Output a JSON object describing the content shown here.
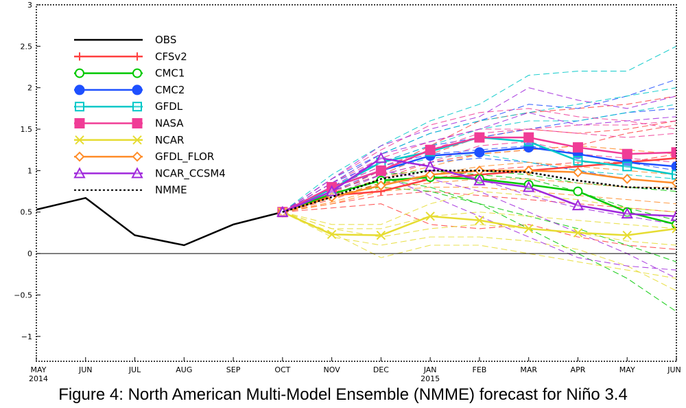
{
  "figure": {
    "caption": "Figure 4: North American Multi-Model Ensemble (NMME) forecast for Niño 3.4"
  },
  "chart_data": {
    "type": "line",
    "title": "",
    "xlabel": "",
    "ylabel": "",
    "x": [
      "MAY 2014",
      "JUN",
      "JUL",
      "AUG",
      "SEP",
      "OCT",
      "NOV",
      "DEC",
      "JAN 2015",
      "FEB",
      "MAR",
      "APR",
      "MAY",
      "JUN"
    ],
    "x_tick_labels": [
      {
        "month": "MAY",
        "year": "2014"
      },
      {
        "month": "JUN",
        "year": ""
      },
      {
        "month": "JUL",
        "year": ""
      },
      {
        "month": "AUG",
        "year": ""
      },
      {
        "month": "SEP",
        "year": ""
      },
      {
        "month": "OCT",
        "year": ""
      },
      {
        "month": "NOV",
        "year": ""
      },
      {
        "month": "DEC",
        "year": ""
      },
      {
        "month": "JAN",
        "year": "2015"
      },
      {
        "month": "FEB",
        "year": ""
      },
      {
        "month": "MAR",
        "year": ""
      },
      {
        "month": "APR",
        "year": ""
      },
      {
        "month": "MAY",
        "year": ""
      },
      {
        "month": "JUN",
        "year": ""
      }
    ],
    "ylim": [
      -1.3,
      3.0
    ],
    "y_ticks": [
      -1,
      -0.5,
      0,
      0.5,
      1,
      1.5,
      2,
      2.5,
      3
    ],
    "y_tick_labels": [
      "−1",
      "−0.5",
      "0",
      "0.5",
      "1",
      "1.5",
      "2",
      "2.5",
      "3"
    ],
    "zero_line": true,
    "grid": false,
    "legend_position": "top-left",
    "series": [
      {
        "name": "OBS",
        "color": "#000000",
        "marker": "none",
        "dash": "solid",
        "values": [
          0.53,
          0.67,
          0.22,
          0.1,
          0.35,
          0.5,
          null,
          null,
          null,
          null,
          null,
          null,
          null,
          null
        ]
      },
      {
        "name": "CFSv2",
        "color": "#ff4040",
        "marker": "plus",
        "dash": "solid",
        "values": [
          null,
          null,
          null,
          null,
          null,
          0.5,
          0.7,
          0.75,
          0.9,
          0.95,
          1.0,
          1.05,
          1.1,
          1.15
        ]
      },
      {
        "name": "CMC1",
        "color": "#00c800",
        "marker": "circle-open",
        "dash": "solid",
        "values": [
          null,
          null,
          null,
          null,
          null,
          0.5,
          0.72,
          0.88,
          0.92,
          0.9,
          0.83,
          0.75,
          0.5,
          0.35
        ]
      },
      {
        "name": "CMC2",
        "color": "#1e50ff",
        "marker": "circle-filled",
        "dash": "solid",
        "values": [
          null,
          null,
          null,
          null,
          null,
          0.5,
          0.8,
          1.0,
          1.18,
          1.22,
          1.28,
          1.2,
          1.1,
          1.05
        ]
      },
      {
        "name": "GFDL",
        "color": "#00c8c8",
        "marker": "square-open",
        "dash": "solid",
        "values": [
          null,
          null,
          null,
          null,
          null,
          0.5,
          0.78,
          1.1,
          1.23,
          1.4,
          1.35,
          1.12,
          1.05,
          0.95
        ]
      },
      {
        "name": "NASA",
        "color": "#f03c96",
        "marker": "square-filled",
        "dash": "solid",
        "values": [
          null,
          null,
          null,
          null,
          null,
          0.5,
          0.8,
          1.0,
          1.25,
          1.4,
          1.4,
          1.28,
          1.2,
          1.22
        ]
      },
      {
        "name": "NCAR",
        "color": "#e6dc32",
        "marker": "x",
        "dash": "solid",
        "values": [
          null,
          null,
          null,
          null,
          null,
          0.5,
          0.23,
          0.22,
          0.45,
          0.4,
          0.3,
          0.25,
          0.22,
          0.3
        ]
      },
      {
        "name": "GFDL_FLOR",
        "color": "#ff8c28",
        "marker": "diamond-open",
        "dash": "solid",
        "values": [
          null,
          null,
          null,
          null,
          null,
          0.5,
          0.68,
          0.82,
          0.95,
          1.0,
          1.0,
          0.98,
          0.9,
          0.85
        ]
      },
      {
        "name": "NCAR_CCSM4",
        "color": "#a028dc",
        "marker": "triangle-open",
        "dash": "solid",
        "values": [
          null,
          null,
          null,
          null,
          null,
          0.5,
          0.75,
          1.15,
          1.05,
          0.88,
          0.8,
          0.58,
          0.48,
          0.45
        ]
      },
      {
        "name": "NMME",
        "color": "#000000",
        "marker": "none",
        "dash": "dotted",
        "values": [
          null,
          null,
          null,
          null,
          null,
          0.5,
          0.68,
          0.9,
          1.0,
          1.0,
          0.98,
          0.88,
          0.8,
          0.78
        ]
      }
    ],
    "ensemble_members": {
      "description_visible": false,
      "palette": [
        "#ff4040",
        "#00c800",
        "#1e50ff",
        "#00c8c8",
        "#f03c96",
        "#e6dc32",
        "#ff8c28",
        "#a028dc"
      ],
      "members": [
        {
          "color": "#ff4040",
          "values": [
            0.5,
            0.75,
            0.95,
            1.2,
            1.4,
            1.5,
            1.45,
            1.5,
            1.6
          ]
        },
        {
          "color": "#ff4040",
          "values": [
            0.5,
            0.6,
            0.7,
            0.75,
            0.7,
            0.65,
            0.6,
            0.55,
            0.5
          ]
        },
        {
          "color": "#ff4040",
          "values": [
            0.5,
            0.72,
            1.0,
            1.3,
            1.6,
            1.7,
            1.75,
            1.8,
            1.9
          ]
        },
        {
          "color": "#ff4040",
          "values": [
            0.5,
            0.65,
            0.85,
            0.9,
            1.0,
            1.05,
            1.1,
            1.1,
            1.2
          ]
        },
        {
          "color": "#ff4040",
          "values": [
            0.5,
            0.55,
            0.6,
            0.35,
            0.3,
            0.35,
            0.2,
            0.1,
            0.05
          ]
        },
        {
          "color": "#ff4040",
          "values": [
            0.5,
            0.7,
            0.9,
            1.1,
            1.2,
            1.25,
            1.3,
            1.45,
            1.55
          ]
        },
        {
          "color": "#00c800",
          "values": [
            0.5,
            0.75,
            0.95,
            1.0,
            0.95,
            0.9,
            0.75,
            0.55,
            0.4
          ]
        },
        {
          "color": "#00c800",
          "values": [
            0.5,
            0.7,
            0.8,
            0.75,
            0.6,
            0.45,
            0.3,
            0.1,
            -0.1
          ]
        },
        {
          "color": "#00c800",
          "values": [
            0.5,
            0.72,
            0.9,
            0.8,
            0.6,
            0.3,
            0.0,
            -0.3,
            -0.7
          ]
        },
        {
          "color": "#00c800",
          "values": [
            0.5,
            0.68,
            0.85,
            0.95,
            1.0,
            0.95,
            0.85,
            0.8,
            0.75
          ]
        },
        {
          "color": "#1e50ff",
          "values": [
            0.5,
            0.9,
            1.2,
            1.45,
            1.6,
            1.8,
            1.75,
            1.9,
            2.1
          ]
        },
        {
          "color": "#1e50ff",
          "values": [
            0.5,
            0.8,
            1.05,
            1.2,
            1.25,
            1.3,
            1.2,
            1.1,
            1.0
          ]
        },
        {
          "color": "#1e50ff",
          "values": [
            0.5,
            0.85,
            1.1,
            1.3,
            1.4,
            1.5,
            1.6,
            1.7,
            1.75
          ]
        },
        {
          "color": "#1e50ff",
          "values": [
            0.5,
            0.75,
            0.95,
            1.1,
            1.15,
            1.1,
            1.0,
            0.9,
            0.85
          ]
        },
        {
          "color": "#00c8c8",
          "values": [
            0.5,
            0.95,
            1.3,
            1.6,
            1.8,
            2.15,
            2.2,
            2.2,
            2.5
          ]
        },
        {
          "color": "#00c8c8",
          "values": [
            0.5,
            0.8,
            1.1,
            1.3,
            1.5,
            1.6,
            1.6,
            1.7,
            1.8
          ]
        },
        {
          "color": "#00c8c8",
          "values": [
            0.5,
            0.75,
            1.0,
            1.15,
            1.2,
            1.1,
            1.0,
            0.95,
            0.9
          ]
        },
        {
          "color": "#00c8c8",
          "values": [
            0.5,
            0.85,
            1.2,
            1.45,
            1.6,
            1.7,
            1.8,
            1.9,
            2.0
          ]
        },
        {
          "color": "#f03c96",
          "values": [
            0.5,
            0.85,
            1.15,
            1.35,
            1.5,
            1.5,
            1.45,
            1.4,
            1.45
          ]
        },
        {
          "color": "#f03c96",
          "values": [
            0.5,
            0.75,
            0.95,
            1.1,
            1.3,
            1.35,
            1.2,
            1.15,
            1.1
          ]
        },
        {
          "color": "#f03c96",
          "values": [
            0.5,
            0.9,
            1.25,
            1.55,
            1.7,
            1.75,
            1.65,
            1.6,
            1.5
          ]
        },
        {
          "color": "#f03c96",
          "values": [
            0.5,
            0.8,
            1.05,
            1.25,
            1.45,
            1.5,
            1.55,
            1.55,
            1.6
          ]
        },
        {
          "color": "#e6dc32",
          "values": [
            0.5,
            0.3,
            0.2,
            0.3,
            0.35,
            0.3,
            0.25,
            0.15,
            0.1
          ]
        },
        {
          "color": "#e6dc32",
          "values": [
            0.5,
            0.25,
            -0.05,
            0.1,
            0.1,
            0.0,
            -0.1,
            -0.2,
            -0.3
          ]
        },
        {
          "color": "#e6dc32",
          "values": [
            0.5,
            0.35,
            0.35,
            0.6,
            0.75,
            0.7,
            0.65,
            0.55,
            0.5
          ]
        },
        {
          "color": "#e6dc32",
          "values": [
            0.5,
            0.2,
            0.1,
            0.2,
            0.2,
            0.15,
            0.05,
            -0.15,
            -0.45
          ]
        },
        {
          "color": "#e6dc32",
          "values": [
            0.5,
            0.3,
            0.3,
            0.45,
            0.5,
            0.45,
            0.4,
            0.35,
            0.3
          ]
        },
        {
          "color": "#ff8c28",
          "values": [
            0.5,
            0.68,
            0.85,
            0.95,
            1.05,
            1.1,
            1.05,
            1.0,
            0.95
          ]
        },
        {
          "color": "#ff8c28",
          "values": [
            0.5,
            0.62,
            0.78,
            0.85,
            0.9,
            0.9,
            0.85,
            0.8,
            0.8
          ]
        },
        {
          "color": "#ff8c28",
          "values": [
            0.5,
            0.72,
            0.9,
            1.05,
            1.2,
            1.25,
            1.3,
            1.25,
            1.2
          ]
        },
        {
          "color": "#ff8c28",
          "values": [
            0.5,
            0.6,
            0.75,
            0.8,
            0.8,
            0.75,
            0.7,
            0.65,
            0.6
          ]
        },
        {
          "color": "#a028dc",
          "values": [
            0.5,
            0.85,
            1.2,
            1.35,
            1.5,
            1.7,
            1.55,
            1.6,
            1.65
          ]
        },
        {
          "color": "#a028dc",
          "values": [
            0.5,
            0.75,
            1.0,
            0.9,
            0.75,
            0.5,
            0.25,
            0.0,
            -0.3
          ]
        },
        {
          "color": "#a028dc",
          "values": [
            0.5,
            0.8,
            1.15,
            1.05,
            0.9,
            0.7,
            0.55,
            0.45,
            0.35
          ]
        },
        {
          "color": "#a028dc",
          "values": [
            0.5,
            0.7,
            0.95,
            0.7,
            0.45,
            0.2,
            -0.05,
            -0.15,
            -0.2
          ]
        },
        {
          "color": "#a028dc",
          "values": [
            0.5,
            0.9,
            1.3,
            1.5,
            1.65,
            2.0,
            1.85,
            1.75,
            1.9
          ]
        }
      ]
    }
  }
}
